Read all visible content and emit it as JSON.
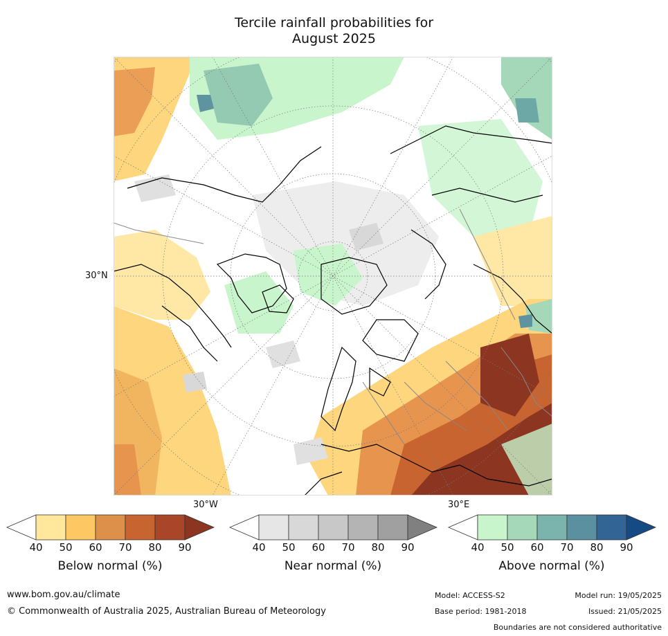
{
  "title_line1": "Tercile rainfall probabilities for",
  "title_line2": "August 2025",
  "map": {
    "lat_label": "30°N",
    "lon_label_west": "30°W",
    "lon_label_east": "30°E"
  },
  "colorbars": [
    {
      "label": "Below normal (%)",
      "ticks": [
        "40",
        "50",
        "60",
        "70",
        "80",
        "90"
      ],
      "colors": [
        "#ffe89c",
        "#fdc864",
        "#dd904a",
        "#c8642f",
        "#aa4628",
        "#8c3520"
      ]
    },
    {
      "label": "Near normal (%)",
      "ticks": [
        "40",
        "50",
        "60",
        "70",
        "80",
        "90"
      ],
      "colors": [
        "#e6e6e6",
        "#d8d8d8",
        "#c8c8c8",
        "#b4b4b4",
        "#a0a0a0",
        "#808080"
      ]
    },
    {
      "label": "Above normal (%)",
      "ticks": [
        "40",
        "50",
        "60",
        "70",
        "80",
        "90"
      ],
      "colors": [
        "#c8f5cc",
        "#a4d8b8",
        "#7ab4ac",
        "#5a90a0",
        "#326496",
        "#164a82"
      ]
    }
  ],
  "footer": {
    "website": "www.bom.gov.au/climate",
    "copyright": "© Commonwealth of Australia 2025, Australian Bureau of Meteorology",
    "model": "Model: ACCESS-S2",
    "base_period": "Base period: 1981-2018",
    "model_run": "Model run: 19/05/2025",
    "issued": "Issued: 21/05/2025",
    "disclaimer": "Boundaries are not considered authoritative"
  }
}
